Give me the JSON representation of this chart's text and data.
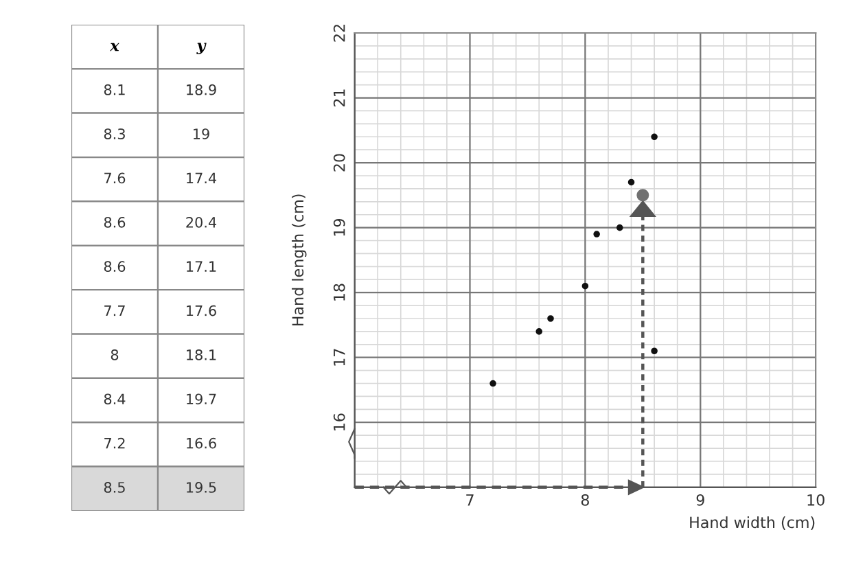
{
  "chart_data": [
    {
      "type": "other",
      "annotations": [
        "x",
        "y",
        "8.1",
        "18.9",
        "8.3",
        "19",
        "7.6",
        "17.4",
        "8.6",
        "20.4",
        "8.6",
        "17.1",
        "7.7",
        "17.6",
        "8",
        "18.1",
        "8.4",
        "19.7",
        "7.2",
        "16.6",
        "8.5",
        "19.5"
      ],
      "colors": [
        "#ffffff",
        "#ffffff",
        "#ffffff",
        "#ffffff",
        "#ffffff",
        "#ffffff",
        "#ffffff",
        "#ffffff",
        "#ffffff",
        "#ffffff",
        "#d9d9d9"
      ]
    },
    {
      "type": "scatter",
      "xlabel": "Hand width (cm)",
      "ylabel": "Hand length (cm)",
      "series": [
        {
          "color": "#111111",
          "x": [
            8.1,
            8.3,
            7.6,
            8.6,
            8.6,
            7.7,
            8,
            8.4,
            7.2
          ],
          "values": [
            18.9,
            19,
            17.4,
            20.4,
            17.1,
            17.6,
            18.1,
            19.7,
            16.6
          ]
        },
        {
          "color": "#707070",
          "x": [
            8.5
          ],
          "values": [
            19.5
          ]
        }
      ],
      "xlim": [
        6,
        10
      ],
      "xticks": [
        {
          "value": 6,
          "label": null
        },
        7,
        8,
        9,
        10
      ],
      "ylim": [
        15,
        22
      ],
      "yticks": [
        {
          "value": 15,
          "label": null
        },
        16,
        17,
        18,
        19,
        20,
        21,
        22
      ],
      "grid": true,
      "marker": "circle"
    }
  ]
}
